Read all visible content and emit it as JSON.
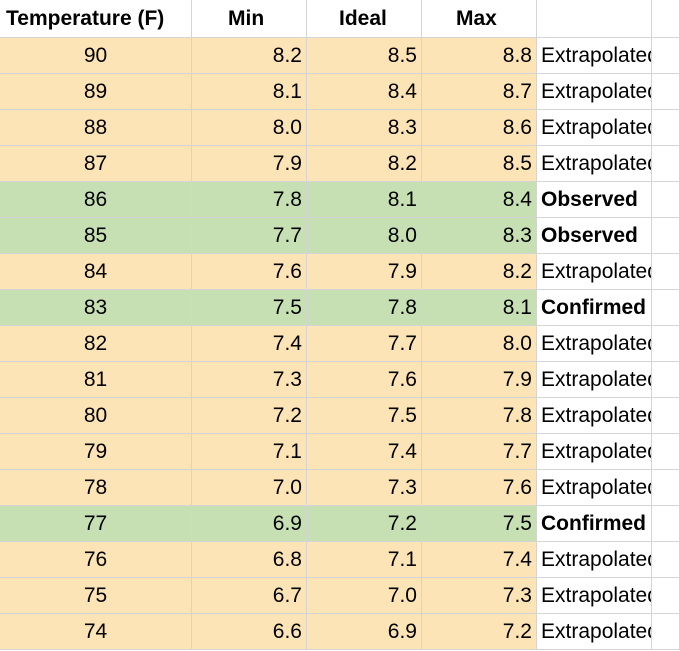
{
  "table": {
    "header": [
      "Temperature (F)",
      "Min",
      "Ideal",
      "Max"
    ],
    "rows": [
      {
        "cells": [
          "90",
          "8.2",
          "8.5",
          "8.8",
          "Extrapolated"
        ],
        "color": "#fce4b6",
        "status_bold": false
      },
      {
        "cells": [
          "89",
          "8.1",
          "8.4",
          "8.7",
          "Extrapolated"
        ],
        "color": "#fce4b6",
        "status_bold": false
      },
      {
        "cells": [
          "88",
          "8.0",
          "8.3",
          "8.6",
          "Extrapolated"
        ],
        "color": "#fce4b6",
        "status_bold": false
      },
      {
        "cells": [
          "87",
          "7.9",
          "8.2",
          "8.5",
          "Extrapolated"
        ],
        "color": "#fce4b6",
        "status_bold": false
      },
      {
        "cells": [
          "86",
          "7.8",
          "8.1",
          "8.4",
          "Observed"
        ],
        "color": "#c6e0b4",
        "status_bold": true
      },
      {
        "cells": [
          "85",
          "7.7",
          "8.0",
          "8.3",
          "Observed"
        ],
        "color": "#c6e0b4",
        "status_bold": true
      },
      {
        "cells": [
          "84",
          "7.6",
          "7.9",
          "8.2",
          "Extrapolated"
        ],
        "color": "#fce4b6",
        "status_bold": false
      },
      {
        "cells": [
          "83",
          "7.5",
          "7.8",
          "8.1",
          "Confirmed"
        ],
        "color": "#c6e0b4",
        "status_bold": true
      },
      {
        "cells": [
          "82",
          "7.4",
          "7.7",
          "8.0",
          "Extrapolated"
        ],
        "color": "#fce4b6",
        "status_bold": false
      },
      {
        "cells": [
          "81",
          "7.3",
          "7.6",
          "7.9",
          "Extrapolated"
        ],
        "color": "#fce4b6",
        "status_bold": false
      },
      {
        "cells": [
          "80",
          "7.2",
          "7.5",
          "7.8",
          "Extrapolated"
        ],
        "color": "#fce4b6",
        "status_bold": false
      },
      {
        "cells": [
          "79",
          "7.1",
          "7.4",
          "7.7",
          "Extrapolated"
        ],
        "color": "#fce4b6",
        "status_bold": false
      },
      {
        "cells": [
          "78",
          "7.0",
          "7.3",
          "7.6",
          "Extrapolated"
        ],
        "color": "#fce4b6",
        "status_bold": false
      },
      {
        "cells": [
          "77",
          "6.9",
          "7.2",
          "7.5",
          "Confirmed"
        ],
        "color": "#c6e0b4",
        "status_bold": true
      },
      {
        "cells": [
          "76",
          "6.8",
          "7.1",
          "7.4",
          "Extrapolated"
        ],
        "color": "#fce4b6",
        "status_bold": false
      },
      {
        "cells": [
          "75",
          "6.7",
          "7.0",
          "7.3",
          "Extrapolated"
        ],
        "color": "#fce4b6",
        "status_bold": false
      },
      {
        "cells": [
          "74",
          "6.6",
          "6.9",
          "7.2",
          "Extrapolated"
        ],
        "color": "#fce4b6",
        "status_bold": false
      }
    ]
  }
}
